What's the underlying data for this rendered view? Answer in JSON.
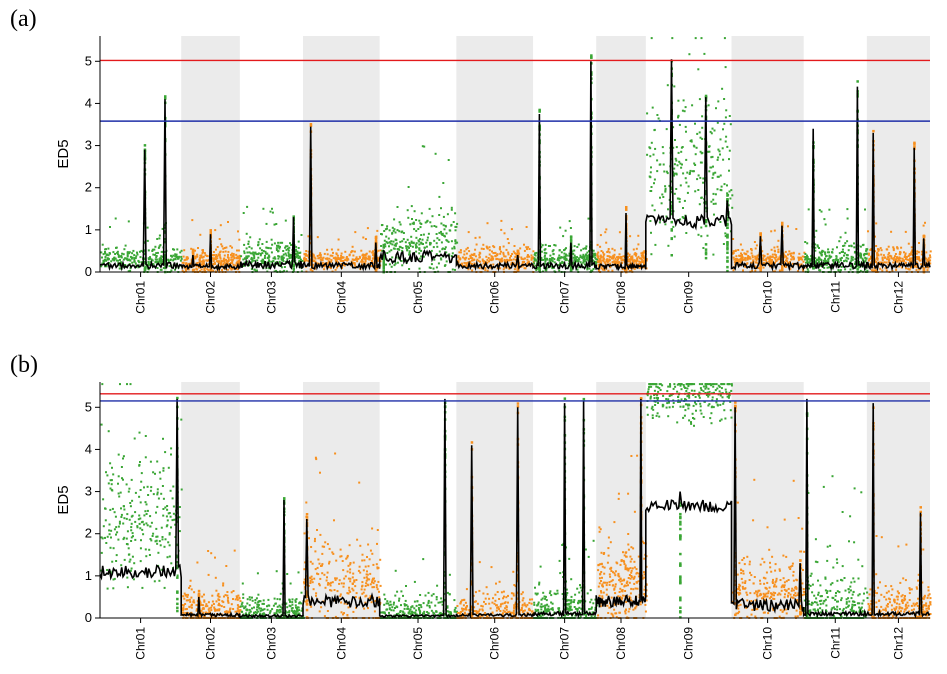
{
  "colors": {
    "even_band": "#ebebeb",
    "green": "#3aa635",
    "orange": "#f7901e",
    "smooth": "#000000",
    "red_threshold": "#e31a1c",
    "blue_threshold": "#1f2fa8"
  },
  "chart_data": [
    {
      "type": "scatter",
      "panel_label": "(a)",
      "ylabel": "ED5",
      "ylim": [
        0,
        5.6
      ],
      "yticks": [
        0,
        1,
        2,
        3,
        4,
        5
      ],
      "grid": false,
      "legend": "none",
      "categories": [
        "Chr01",
        "Chr02",
        "Chr03",
        "Chr04",
        "Chr05",
        "Chr06",
        "Chr07",
        "Chr08",
        "Chr09",
        "Chr10",
        "Chr11",
        "Chr12"
      ],
      "chromosome_colors": [
        "green",
        "orange",
        "green",
        "orange",
        "green",
        "orange",
        "green",
        "orange",
        "green",
        "orange",
        "green",
        "orange"
      ],
      "thresholds": [
        {
          "color": "red",
          "y": 5.02
        },
        {
          "color": "blue",
          "y": 3.58
        }
      ],
      "background_level": [
        0.3,
        0.25,
        0.35,
        0.3,
        0.7,
        0.3,
        0.3,
        0.25,
        2.4,
        0.3,
        0.3,
        0.3
      ],
      "background_spread": [
        0.5,
        0.5,
        0.6,
        0.4,
        1.2,
        0.5,
        0.5,
        0.4,
        2.8,
        0.4,
        0.6,
        0.5
      ],
      "peaks": [
        {
          "chr": 0,
          "pos": 0.55,
          "y": 2.9
        },
        {
          "chr": 0,
          "pos": 0.8,
          "y": 4.1
        },
        {
          "chr": 1,
          "pos": 0.2,
          "y": 0.4
        },
        {
          "chr": 1,
          "pos": 0.5,
          "y": 0.9
        },
        {
          "chr": 2,
          "pos": 0.85,
          "y": 1.3
        },
        {
          "chr": 3,
          "pos": 0.1,
          "y": 3.45
        },
        {
          "chr": 3,
          "pos": 0.95,
          "y": 0.7
        },
        {
          "chr": 4,
          "pos": 0.05,
          "y": 0.5
        },
        {
          "chr": 5,
          "pos": 0.8,
          "y": 0.4
        },
        {
          "chr": 6,
          "pos": 0.1,
          "y": 3.75
        },
        {
          "chr": 6,
          "pos": 0.6,
          "y": 0.7
        },
        {
          "chr": 6,
          "pos": 0.92,
          "y": 5.0
        },
        {
          "chr": 7,
          "pos": 0.6,
          "y": 1.4
        },
        {
          "chr": 8,
          "pos": 0.3,
          "y": 5.05
        },
        {
          "chr": 8,
          "pos": 0.7,
          "y": 4.15
        },
        {
          "chr": 8,
          "pos": 0.95,
          "y": 1.7
        },
        {
          "chr": 9,
          "pos": 0.4,
          "y": 0.85
        },
        {
          "chr": 9,
          "pos": 0.7,
          "y": 1.1
        },
        {
          "chr": 10,
          "pos": 0.15,
          "y": 3.4
        },
        {
          "chr": 10,
          "pos": 0.85,
          "y": 4.4
        },
        {
          "chr": 11,
          "pos": 0.1,
          "y": 3.3
        },
        {
          "chr": 11,
          "pos": 0.75,
          "y": 2.95
        },
        {
          "chr": 11,
          "pos": 0.9,
          "y": 0.8
        }
      ]
    },
    {
      "type": "scatter",
      "panel_label": "(b)",
      "ylabel": "ED5",
      "ylim": [
        0,
        5.6
      ],
      "yticks": [
        0,
        1,
        2,
        3,
        4,
        5
      ],
      "grid": false,
      "legend": "none",
      "categories": [
        "Chr01",
        "Chr02",
        "Chr03",
        "Chr04",
        "Chr05",
        "Chr06",
        "Chr07",
        "Chr08",
        "Chr09",
        "Chr10",
        "Chr11",
        "Chr12"
      ],
      "chromosome_colors": [
        "green",
        "orange",
        "green",
        "orange",
        "green",
        "orange",
        "green",
        "orange",
        "green",
        "orange",
        "green",
        "orange"
      ],
      "thresholds": [
        {
          "color": "red",
          "y": 5.32
        },
        {
          "color": "blue",
          "y": 5.15
        }
      ],
      "background_level": [
        2.2,
        0.15,
        0.1,
        0.8,
        0.1,
        0.15,
        0.2,
        0.8,
        5.3,
        0.6,
        0.2,
        0.2
      ],
      "background_spread": [
        2.5,
        0.8,
        0.6,
        1.8,
        0.7,
        0.8,
        0.9,
        1.6,
        1.0,
        1.4,
        1.6,
        1.0
      ],
      "peaks": [
        {
          "chr": 0,
          "pos": 0.95,
          "y": 5.2
        },
        {
          "chr": 1,
          "pos": 0.3,
          "y": 0.5
        },
        {
          "chr": 2,
          "pos": 0.7,
          "y": 2.8
        },
        {
          "chr": 3,
          "pos": 0.05,
          "y": 2.35
        },
        {
          "chr": 4,
          "pos": 0.85,
          "y": 5.2
        },
        {
          "chr": 5,
          "pos": 0.2,
          "y": 4.1
        },
        {
          "chr": 5,
          "pos": 0.8,
          "y": 5.0
        },
        {
          "chr": 6,
          "pos": 0.5,
          "y": 5.1
        },
        {
          "chr": 6,
          "pos": 0.8,
          "y": 5.15
        },
        {
          "chr": 7,
          "pos": 0.9,
          "y": 5.2
        },
        {
          "chr": 8,
          "pos": 0.4,
          "y": 3.0
        },
        {
          "chr": 9,
          "pos": 0.05,
          "y": 5.0
        },
        {
          "chr": 9,
          "pos": 0.95,
          "y": 1.3
        },
        {
          "chr": 10,
          "pos": 0.05,
          "y": 5.2
        },
        {
          "chr": 11,
          "pos": 0.1,
          "y": 5.1
        },
        {
          "chr": 11,
          "pos": 0.85,
          "y": 2.5
        }
      ]
    }
  ]
}
